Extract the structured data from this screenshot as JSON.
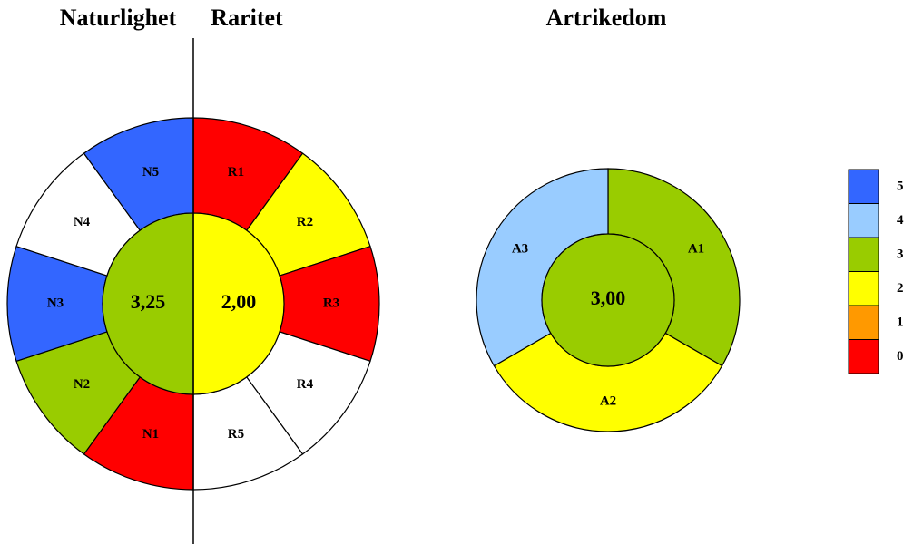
{
  "titles": [
    "Naturlighet",
    "Raritet",
    "Artrikedom"
  ],
  "rings": [
    {
      "segments": [
        {
          "label": "R1",
          "color": "#ff0000"
        },
        {
          "label": "R2",
          "color": "#ffff00"
        },
        {
          "label": "R3",
          "color": "#ff0000"
        },
        {
          "label": "R4",
          "color": "#ffffff"
        },
        {
          "label": "R5",
          "color": "#ffffff"
        },
        {
          "label": "N1",
          "color": "#ff0000"
        },
        {
          "label": "N2",
          "color": "#99cc00"
        },
        {
          "label": "N3",
          "color": "#3366ff"
        },
        {
          "label": "N4",
          "color": "#ffffff"
        },
        {
          "label": "N5",
          "color": "#3366ff"
        }
      ],
      "centers": [
        {
          "label": "2,00",
          "color": "#ffff00"
        },
        {
          "label": "3,25",
          "color": "#99cc00"
        }
      ]
    },
    {
      "segments": [
        {
          "label": "A1",
          "color": "#99cc00"
        },
        {
          "label": "A2",
          "color": "#ffff00"
        },
        {
          "label": "A3",
          "color": "#99ccff"
        }
      ],
      "centers": [
        {
          "label": "3,00",
          "color": "#99cc00"
        }
      ]
    }
  ],
  "legend": [
    {
      "label": "5",
      "color": "#3366ff"
    },
    {
      "label": "4",
      "color": "#99ccff"
    },
    {
      "label": "3",
      "color": "#99cc00"
    },
    {
      "label": "2",
      "color": "#ffff00"
    },
    {
      "label": "1",
      "color": "#ff9900"
    },
    {
      "label": "0",
      "color": "#ff0000"
    }
  ]
}
